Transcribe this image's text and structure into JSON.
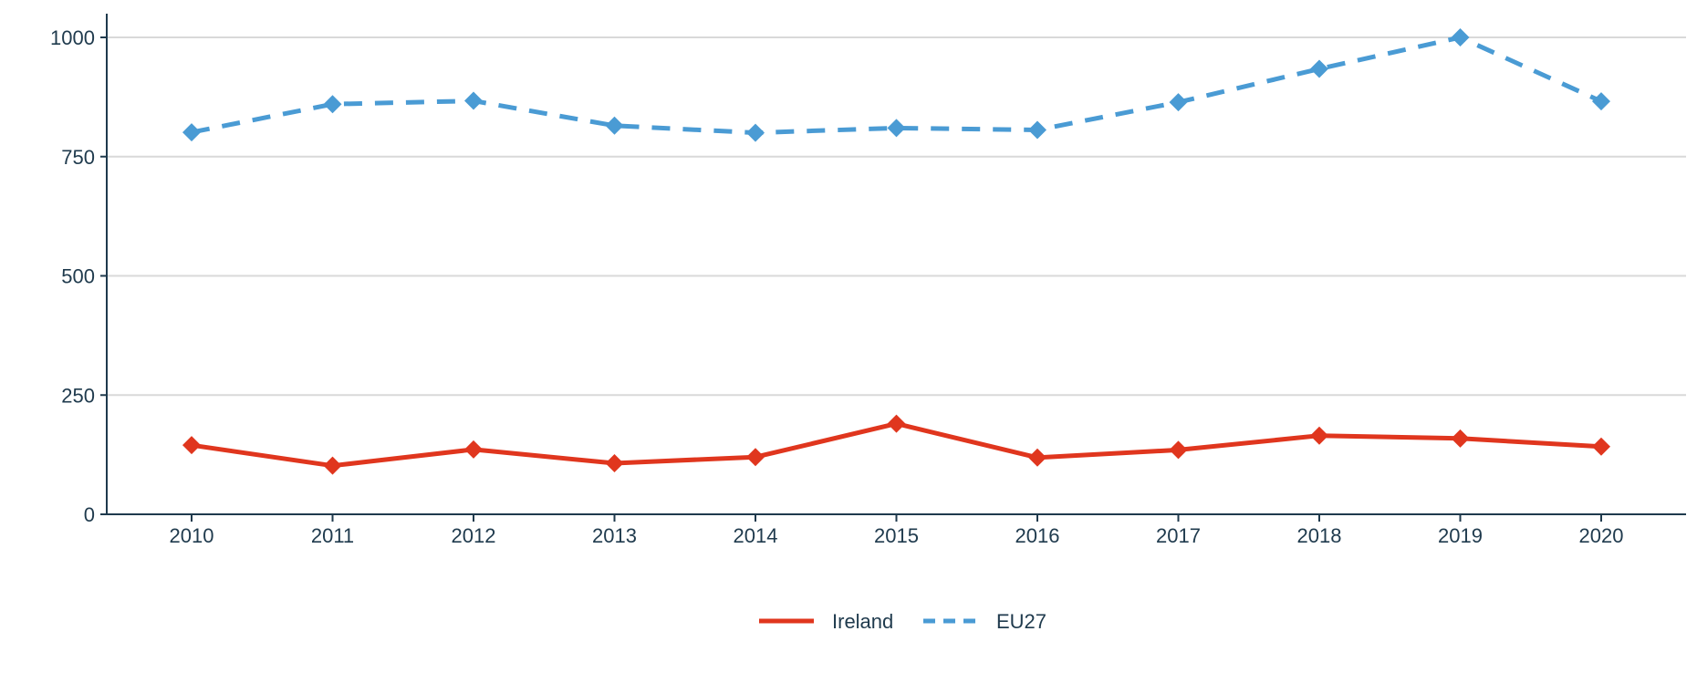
{
  "chart_data": {
    "type": "line",
    "title": "",
    "xlabel": "",
    "ylabel": "",
    "x": [
      "2010",
      "2011",
      "2012",
      "2013",
      "2014",
      "2015",
      "2016",
      "2017",
      "2018",
      "2019",
      "2020"
    ],
    "ylim": [
      0,
      1050
    ],
    "yticks": [
      0,
      250,
      500,
      750,
      1000
    ],
    "ytick_labels": [
      "0",
      "250",
      "500",
      "750",
      "1000"
    ],
    "grid": "horizontal",
    "legend_position": "bottom-center",
    "series": [
      {
        "name": "Ireland",
        "values": [
          145,
          102,
          136,
          107,
          120,
          190,
          119,
          135,
          165,
          159,
          142
        ],
        "color": "#e0361e",
        "line_style": "solid",
        "marker": "diamond"
      },
      {
        "name": "EU27",
        "values": [
          801,
          860,
          867,
          815,
          800,
          810,
          806,
          864,
          934,
          1000,
          866
        ],
        "color": "#4a9bd4",
        "line_style": "dashed",
        "marker": "diamond"
      }
    ]
  }
}
